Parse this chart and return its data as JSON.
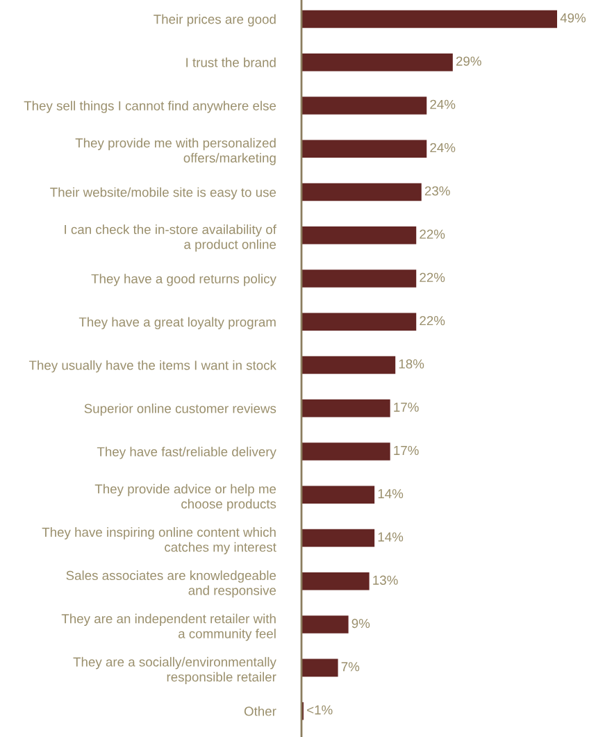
{
  "chart_data": {
    "type": "bar",
    "orientation": "horizontal",
    "color": "#632523",
    "categories": [
      "Their prices are good",
      "I trust the brand",
      "They sell things I cannot find anywhere else",
      "They provide me with personalized\noffers/marketing",
      "Their website/mobile site is easy to use",
      "I can check the in-store availability of\na product online",
      "They have a good returns policy",
      "They have a great loyalty program",
      "They usually have the items I want in stock",
      "Superior online customer reviews",
      "They have fast/reliable delivery",
      "They provide advice or help me\nchoose products",
      "They have inspiring online content which\ncatches my interest",
      "Sales associates are knowledgeable\nand responsive",
      "They are an independent retailer with\na community feel",
      "They are a socially/environmentally\nresponsible retailer",
      "Other"
    ],
    "values": [
      49,
      29,
      24,
      24,
      23,
      22,
      22,
      22,
      18,
      17,
      17,
      14,
      14,
      13,
      9,
      7,
      0.4
    ],
    "value_labels": [
      "49%",
      "29%",
      "24%",
      "24%",
      "23%",
      "22%",
      "22%",
      "22%",
      "18%",
      "17%",
      "17%",
      "14%",
      "14%",
      "13%",
      "9%",
      "7%",
      "<1%"
    ]
  }
}
